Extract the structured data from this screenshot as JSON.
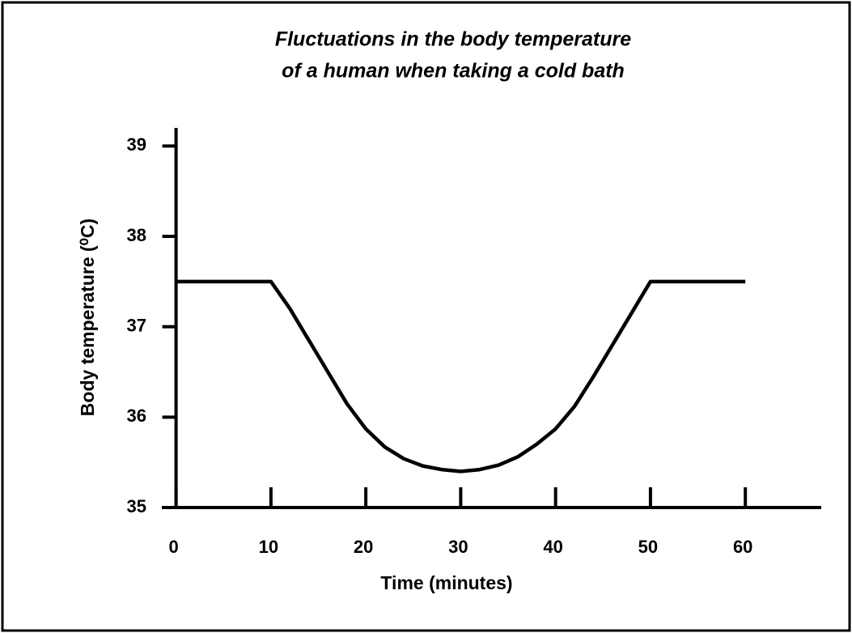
{
  "chart_data": {
    "type": "line",
    "title": [
      "Fluctuations in the body temperature",
      "of a human when taking a cold bath"
    ],
    "xlabel": "Time (minutes)",
    "ylabel": "Body temperature (⁰C)",
    "x": [
      0,
      10,
      12,
      14,
      16,
      18,
      20,
      22,
      24,
      26,
      28,
      30,
      32,
      34,
      36,
      38,
      40,
      42,
      44,
      46,
      48,
      50,
      60
    ],
    "series": [
      {
        "color": "#000000",
        "values": [
          37.5,
          37.5,
          37.2,
          36.85,
          36.5,
          36.15,
          35.87,
          35.67,
          35.54,
          35.46,
          35.42,
          35.4,
          35.42,
          35.47,
          35.56,
          35.7,
          35.87,
          36.12,
          36.45,
          36.8,
          37.15,
          37.5,
          37.5
        ]
      }
    ],
    "xlim": [
      -1.5,
      68
    ],
    "xticks": [
      0,
      10,
      20,
      30,
      40,
      50,
      60
    ],
    "ylim": [
      35,
      39.2
    ],
    "yticks": [
      35,
      36,
      37,
      38,
      39
    ]
  }
}
